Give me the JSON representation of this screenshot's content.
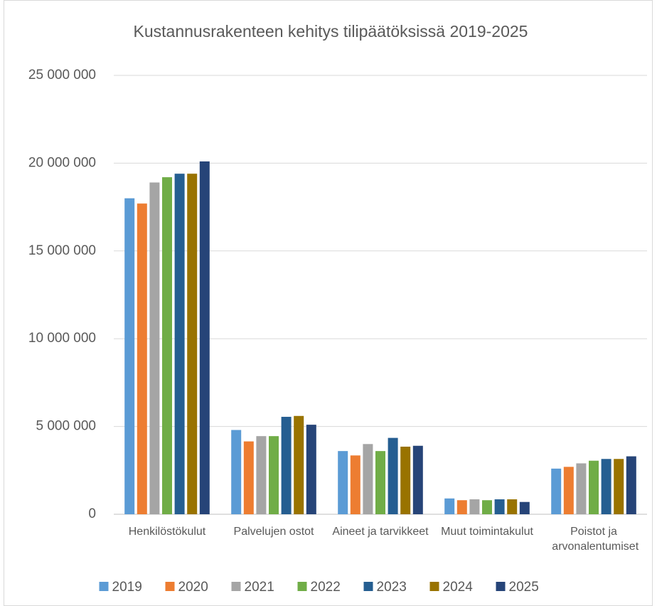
{
  "chart_data": {
    "type": "bar",
    "title": "Kustannusrakenteen kehitys tilipäätöksissä 2019-2025",
    "categories": [
      "Henkilöstökulut",
      "Palvelujen ostot",
      "Aineet ja tarvikkeet",
      "Muut toimintakulut",
      "Poistot ja arvonalentumiset"
    ],
    "series": [
      {
        "name": "2019",
        "color": "#5b9bd5",
        "values": [
          18000000,
          4800000,
          3600000,
          900000,
          2600000
        ]
      },
      {
        "name": "2020",
        "color": "#ed7d31",
        "values": [
          17700000,
          4150000,
          3350000,
          800000,
          2700000
        ]
      },
      {
        "name": "2021",
        "color": "#a5a5a5",
        "values": [
          18900000,
          4450000,
          4000000,
          850000,
          2900000
        ]
      },
      {
        "name": "2022",
        "color": "#70ad47",
        "values": [
          19200000,
          4450000,
          3600000,
          800000,
          3050000
        ]
      },
      {
        "name": "2023",
        "color": "#255e91",
        "values": [
          19400000,
          5550000,
          4350000,
          850000,
          3150000
        ]
      },
      {
        "name": "2024",
        "color": "#997300",
        "values": [
          19400000,
          5600000,
          3850000,
          850000,
          3150000
        ]
      },
      {
        "name": "2025",
        "color": "#264478",
        "values": [
          20100000,
          5100000,
          3900000,
          700000,
          3300000
        ]
      }
    ],
    "ylim": [
      0,
      25000000
    ],
    "yticks": [
      0,
      {
        "value": 5000000,
        "label": "5 000 000"
      },
      {
        "value": 10000000,
        "label": "10 000 000"
      },
      {
        "value": 15000000,
        "label": "15 000 000"
      },
      {
        "value": 20000000,
        "label": "20 000 000"
      },
      {
        "value": 25000000,
        "label": "25 000 000"
      }
    ],
    "grid": true,
    "legend": "bottom"
  }
}
